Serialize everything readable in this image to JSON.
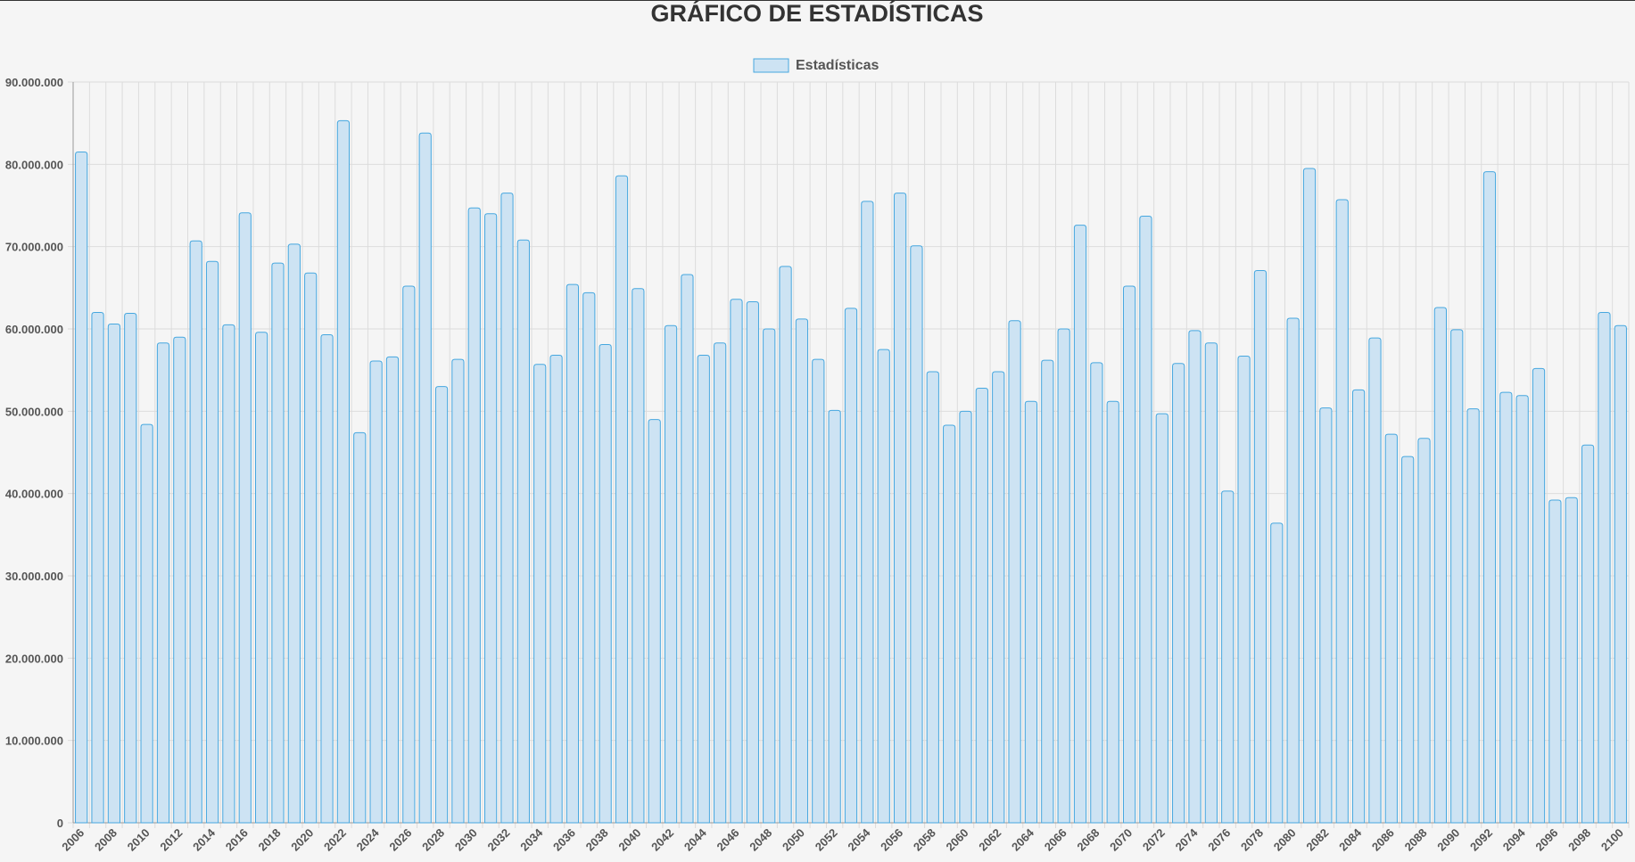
{
  "chart_data": {
    "type": "bar",
    "title": "GRÁFICO DE ESTADÍSTICAS",
    "legend": {
      "label": "Estadísticas",
      "position": "top"
    },
    "xlabel": "",
    "ylabel": "",
    "ylim": [
      0,
      90000000
    ],
    "y_ticks": [
      0,
      10000000,
      20000000,
      30000000,
      40000000,
      50000000,
      60000000,
      70000000,
      80000000,
      90000000
    ],
    "y_tick_labels": [
      "0",
      "10.000.000",
      "20.000.000",
      "30.000.000",
      "40.000.000",
      "50.000.000",
      "60.000.000",
      "70.000.000",
      "80.000.000",
      "90.000.000"
    ],
    "grid": true,
    "colors": {
      "fill": "#cde3f3",
      "border": "#46a7df",
      "grid": "#dcdcdc",
      "axis": "#999999"
    },
    "categories": [
      2006,
      2007,
      2008,
      2009,
      2010,
      2011,
      2012,
      2013,
      2014,
      2015,
      2016,
      2017,
      2018,
      2019,
      2020,
      2021,
      2022,
      2023,
      2024,
      2025,
      2026,
      2027,
      2028,
      2029,
      2030,
      2031,
      2032,
      2033,
      2034,
      2035,
      2036,
      2037,
      2038,
      2039,
      2040,
      2041,
      2042,
      2043,
      2044,
      2045,
      2046,
      2047,
      2048,
      2049,
      2050,
      2051,
      2052,
      2053,
      2054,
      2055,
      2056,
      2057,
      2058,
      2059,
      2060,
      2061,
      2062,
      2063,
      2064,
      2065,
      2066,
      2067,
      2068,
      2069,
      2070,
      2071,
      2072,
      2073,
      2074,
      2075,
      2076,
      2077,
      2078,
      2079,
      2080,
      2081,
      2082,
      2083,
      2084,
      2085,
      2086,
      2087,
      2088,
      2089,
      2090,
      2091,
      2092,
      2093,
      2094,
      2095,
      2096,
      2097,
      2098,
      2099,
      2100
    ],
    "x_tick_labels": [
      "2006",
      "2008",
      "2010",
      "2012",
      "2014",
      "2016",
      "2018",
      "2020",
      "2022",
      "2024",
      "2026",
      "2028",
      "2030",
      "2032",
      "2034",
      "2036",
      "2038",
      "2040",
      "2042",
      "2044",
      "2046",
      "2048",
      "2050",
      "2052",
      "2054",
      "2056",
      "2058",
      "2060",
      "2062",
      "2064",
      "2066",
      "2068",
      "2070",
      "2072",
      "2074",
      "2076",
      "2078",
      "2080",
      "2082",
      "2084",
      "2086",
      "2088",
      "2090",
      "2092",
      "2094",
      "2096",
      "2098",
      "2100"
    ],
    "values": [
      81500000,
      62000000,
      60600000,
      61900000,
      48400000,
      58300000,
      59000000,
      70700000,
      68200000,
      60500000,
      74100000,
      59600000,
      68000000,
      70300000,
      66800000,
      59300000,
      85300000,
      47400000,
      56100000,
      56600000,
      65200000,
      83800000,
      53000000,
      56300000,
      74700000,
      74000000,
      76500000,
      70800000,
      55700000,
      56800000,
      65400000,
      64400000,
      58100000,
      78600000,
      64900000,
      49000000,
      60400000,
      66600000,
      56800000,
      58300000,
      63600000,
      63300000,
      60000000,
      67600000,
      61200000,
      56300000,
      50100000,
      62500000,
      75500000,
      57500000,
      76500000,
      70100000,
      54800000,
      48300000,
      50000000,
      52800000,
      54800000,
      61000000,
      51200000,
      56200000,
      60000000,
      72600000,
      55900000,
      51200000,
      65200000,
      73700000,
      49700000,
      55800000,
      59800000,
      58300000,
      40300000,
      56700000,
      67100000,
      36400000,
      61300000,
      79500000,
      50400000,
      75700000,
      52600000,
      58900000,
      47200000,
      44500000,
      46700000,
      62600000,
      59900000,
      50300000,
      79100000,
      52300000,
      51900000,
      55200000,
      39200000,
      39500000,
      45900000,
      62000000,
      60400000
    ]
  }
}
